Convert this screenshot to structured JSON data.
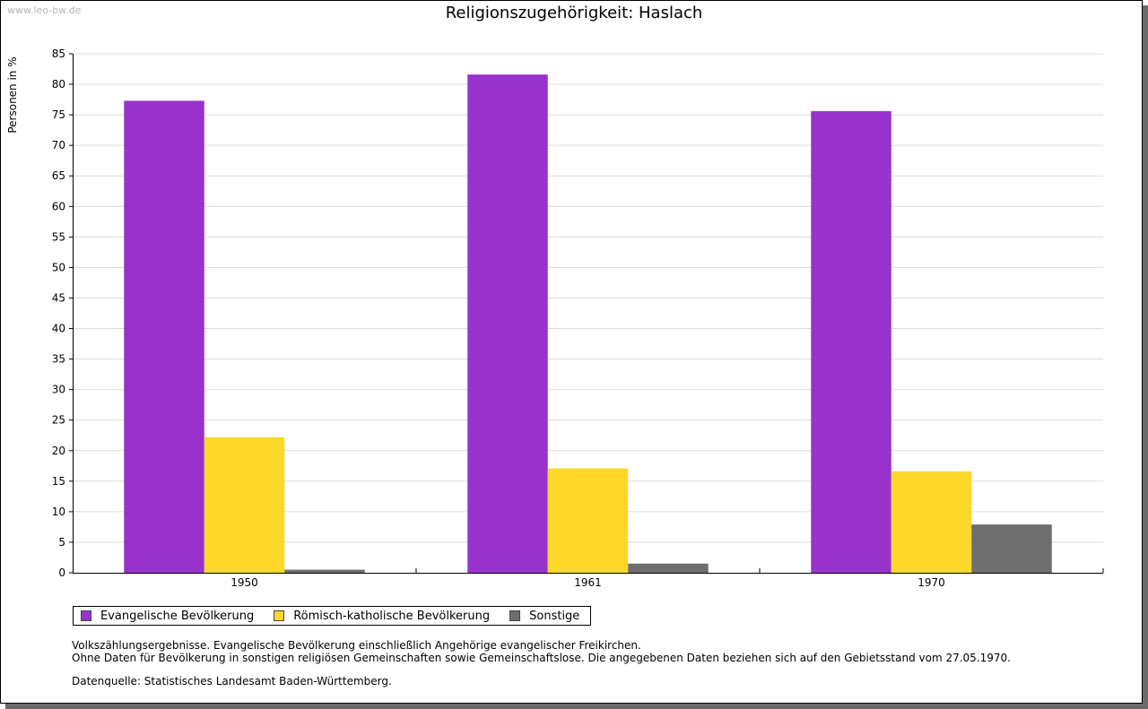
{
  "watermark": "www.leo-bw.de",
  "colors": {
    "evangelisch": "#9932CC",
    "katholisch": "#FDD72A",
    "sonstige": "#6E6E6E"
  },
  "chart_data": {
    "type": "bar",
    "title": "Religionszugehörigkeit: Haslach",
    "xlabel": "",
    "ylabel": "Personen in %",
    "ylim": [
      0,
      85
    ],
    "yticks": [
      0,
      5,
      10,
      15,
      20,
      25,
      30,
      35,
      40,
      45,
      50,
      55,
      60,
      65,
      70,
      75,
      80,
      85
    ],
    "grid": true,
    "legend_position": "bottom-left",
    "categories": [
      "1950",
      "1961",
      "1970"
    ],
    "series": [
      {
        "name": "Evangelische Bevölkerung",
        "values": [
          77.3,
          81.6,
          75.6
        ]
      },
      {
        "name": "Römisch-katholische Bevölkerung",
        "values": [
          22.2,
          17.1,
          16.6
        ]
      },
      {
        "name": "Sonstige",
        "values": [
          0.5,
          1.5,
          7.9
        ]
      }
    ]
  },
  "notes": {
    "line1": "Volkszählungsergebnisse. Evangelische Bevölkerung einschließlich Angehörige evangelischer Freikirchen.",
    "line2": "Ohne Daten für Bevölkerung in sonstigen religiösen Gemeinschaften sowie Gemeinschaftslose. Die angegebenen Daten beziehen sich auf den Gebietsstand vom 27.05.1970.",
    "source": "Datenquelle: Statistisches Landesamt Baden-Württemberg."
  }
}
